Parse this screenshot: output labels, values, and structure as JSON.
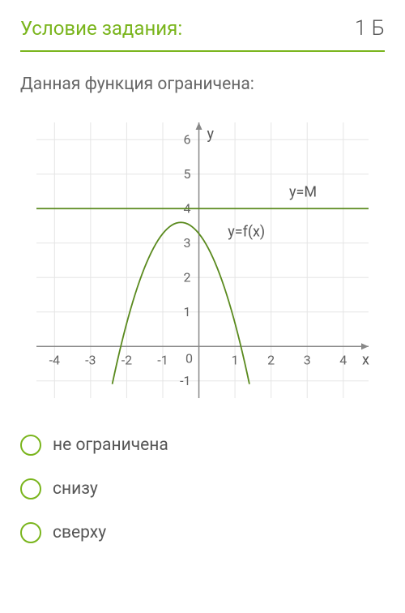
{
  "header": {
    "title": "Условие задания:",
    "score": "1 Б"
  },
  "question": "Данная функция ограничена:",
  "chart": {
    "type": "line",
    "background_color": "#ffffff",
    "grid_color": "#e5e5e5",
    "axis_color": "#888888",
    "tick_font_size": 16,
    "tick_color": "#666666",
    "label_font_size": 18,
    "label_color": "#555555",
    "xlim": [
      -4.5,
      4.7
    ],
    "ylim": [
      -1.5,
      6.5
    ],
    "xticks": [
      -4,
      -3,
      -2,
      -1,
      0,
      1,
      2,
      3,
      4
    ],
    "yticks": [
      -1,
      0,
      1,
      2,
      3,
      4,
      5,
      6
    ],
    "x_axis_label": "x",
    "y_axis_label": "y",
    "curves": [
      {
        "name": "y=M",
        "label": "y=M",
        "label_pos": {
          "x": 2.5,
          "y": 4.35
        },
        "color": "#5a8a1e",
        "width": 1.8,
        "points": [
          [
            -4.5,
            4
          ],
          [
            4.7,
            4
          ]
        ]
      },
      {
        "name": "y=f(x)",
        "label": "y=f(x)",
        "label_pos": {
          "x": 0.8,
          "y": 3.2
        },
        "color": "#5a8a1e",
        "width": 1.8,
        "vertex": [
          -0.5,
          3.6
        ],
        "a": -1.3,
        "x_from": -2.4,
        "x_to": 1.4
      }
    ]
  },
  "options": [
    {
      "id": "not-bounded",
      "label": "не ограничена"
    },
    {
      "id": "from-below",
      "label": "снизу"
    },
    {
      "id": "from-above",
      "label": "сверху"
    }
  ]
}
